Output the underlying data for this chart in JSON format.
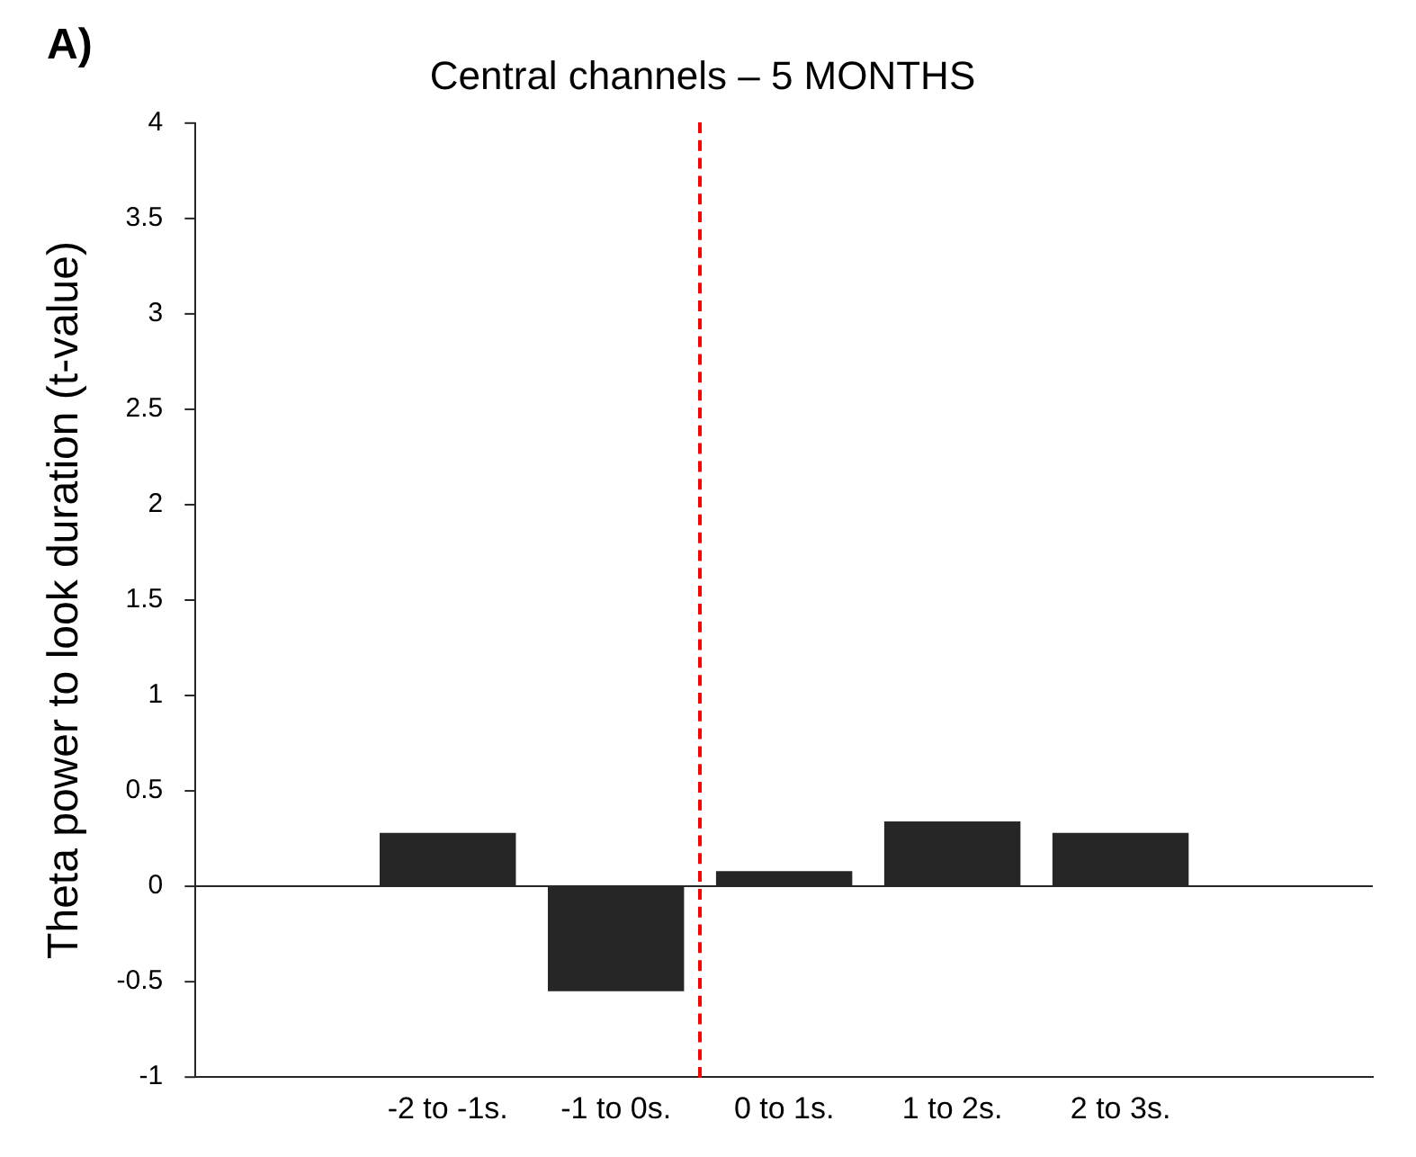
{
  "chart_data": {
    "type": "bar",
    "title": "Central channels – 5 MONTHS",
    "ylabel": "Theta power to look duration (t-value)",
    "annotations": [
      "A)"
    ],
    "categories": [
      null,
      "-2 to -1s.",
      "-1 to 0s.",
      "0 to 1s.",
      "1 to 2s.",
      "2 to 3s.",
      null
    ],
    "values": [
      null,
      0.28,
      -0.55,
      0.08,
      0.34,
      0.28,
      null
    ],
    "color": "#262626",
    "ylim": [
      -1,
      4
    ],
    "yticks": [
      -1,
      -0.5,
      0,
      0.5,
      1,
      1.5,
      2,
      2.5,
      3,
      3.5,
      4
    ],
    "ref_lines": [
      {
        "axis": "x",
        "value": "0 to 1s.",
        "color": "#ff0000",
        "line_style": "dashed"
      }
    ],
    "grid": false,
    "legend": false
  }
}
